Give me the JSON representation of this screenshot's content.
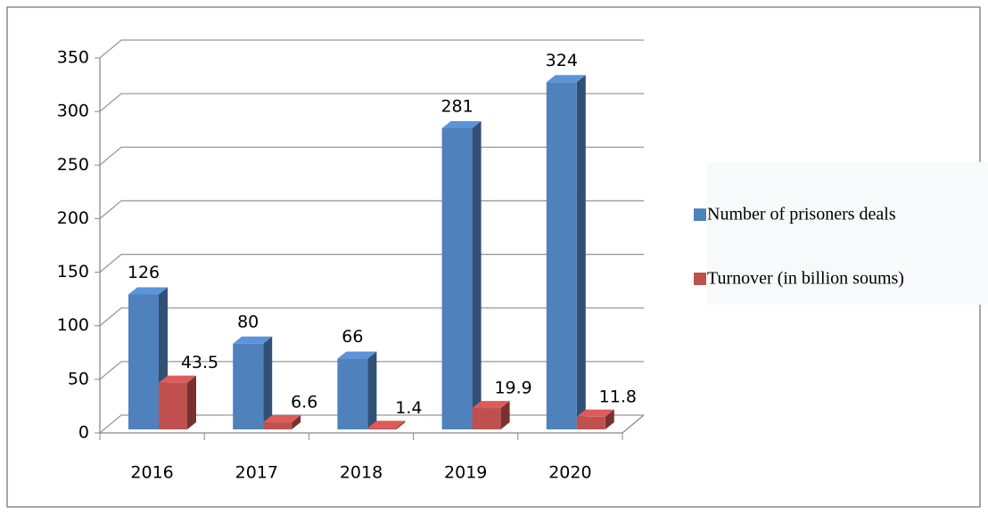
{
  "chart_data": {
    "type": "bar3d",
    "categories": [
      "2016",
      "2017",
      "2018",
      "2019",
      "2020"
    ],
    "series": [
      {
        "name": "Number of prisoners deals",
        "color": "#4f81bd",
        "values": [
          126,
          80,
          66,
          281,
          324
        ]
      },
      {
        "name": "Turnover (in billion soums)",
        "color": "#c0504d",
        "values": [
          43.5,
          6.6,
          1.4,
          19.9,
          11.8
        ]
      }
    ],
    "ylim": [
      0,
      350
    ],
    "yticks": [
      0,
      50,
      100,
      150,
      200,
      250,
      300,
      350
    ],
    "grid": true,
    "legend": "right"
  }
}
